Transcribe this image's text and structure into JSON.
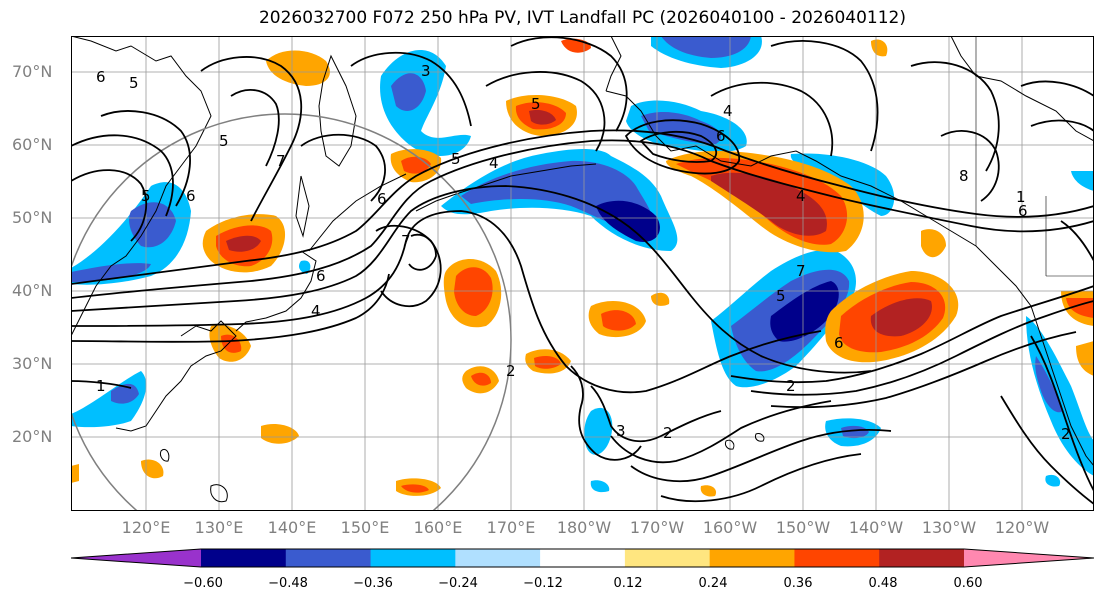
{
  "title": "2026032700 F072 250 hPa PV, IVT Landfall PC (2026040100 - 2026040112)",
  "lat_labels": [
    "70°N",
    "60°N",
    "50°N",
    "40°N",
    "30°N",
    "20°N"
  ],
  "lon_labels": [
    "120°E",
    "130°E",
    "140°E",
    "150°E",
    "160°E",
    "170°E",
    "180°W",
    "170°W",
    "160°W",
    "150°W",
    "140°W",
    "130°W",
    "120°W"
  ],
  "colorbar": {
    "ticks": [
      "−0.60",
      "−0.48",
      "−0.36",
      "−0.24",
      "−0.12",
      "0.12",
      "0.24",
      "0.36",
      "0.48",
      "0.60"
    ],
    "colors": [
      "#9932CC",
      "#00008B",
      "#3A5BCF",
      "#00BFFF",
      "#B0E0FF",
      "#FFFFFF",
      "#FFE680",
      "#FFA500",
      "#FF4500",
      "#B22222",
      "#FF88B0"
    ]
  },
  "contour_labels": [
    "6",
    "5",
    "5",
    "7",
    "6",
    "5",
    "4",
    "7",
    "6",
    "6",
    "4",
    "5",
    "3",
    "4",
    "6",
    "5",
    "4",
    "2",
    "1",
    "2",
    "3",
    "2",
    "2",
    "6",
    "5",
    "7",
    "6",
    "8",
    "1"
  ],
  "colors": {
    "positive": "#FF4500",
    "negative": "#3A5BCF",
    "contour": "#000000",
    "grid": "#999999",
    "coast": "#000000"
  }
}
